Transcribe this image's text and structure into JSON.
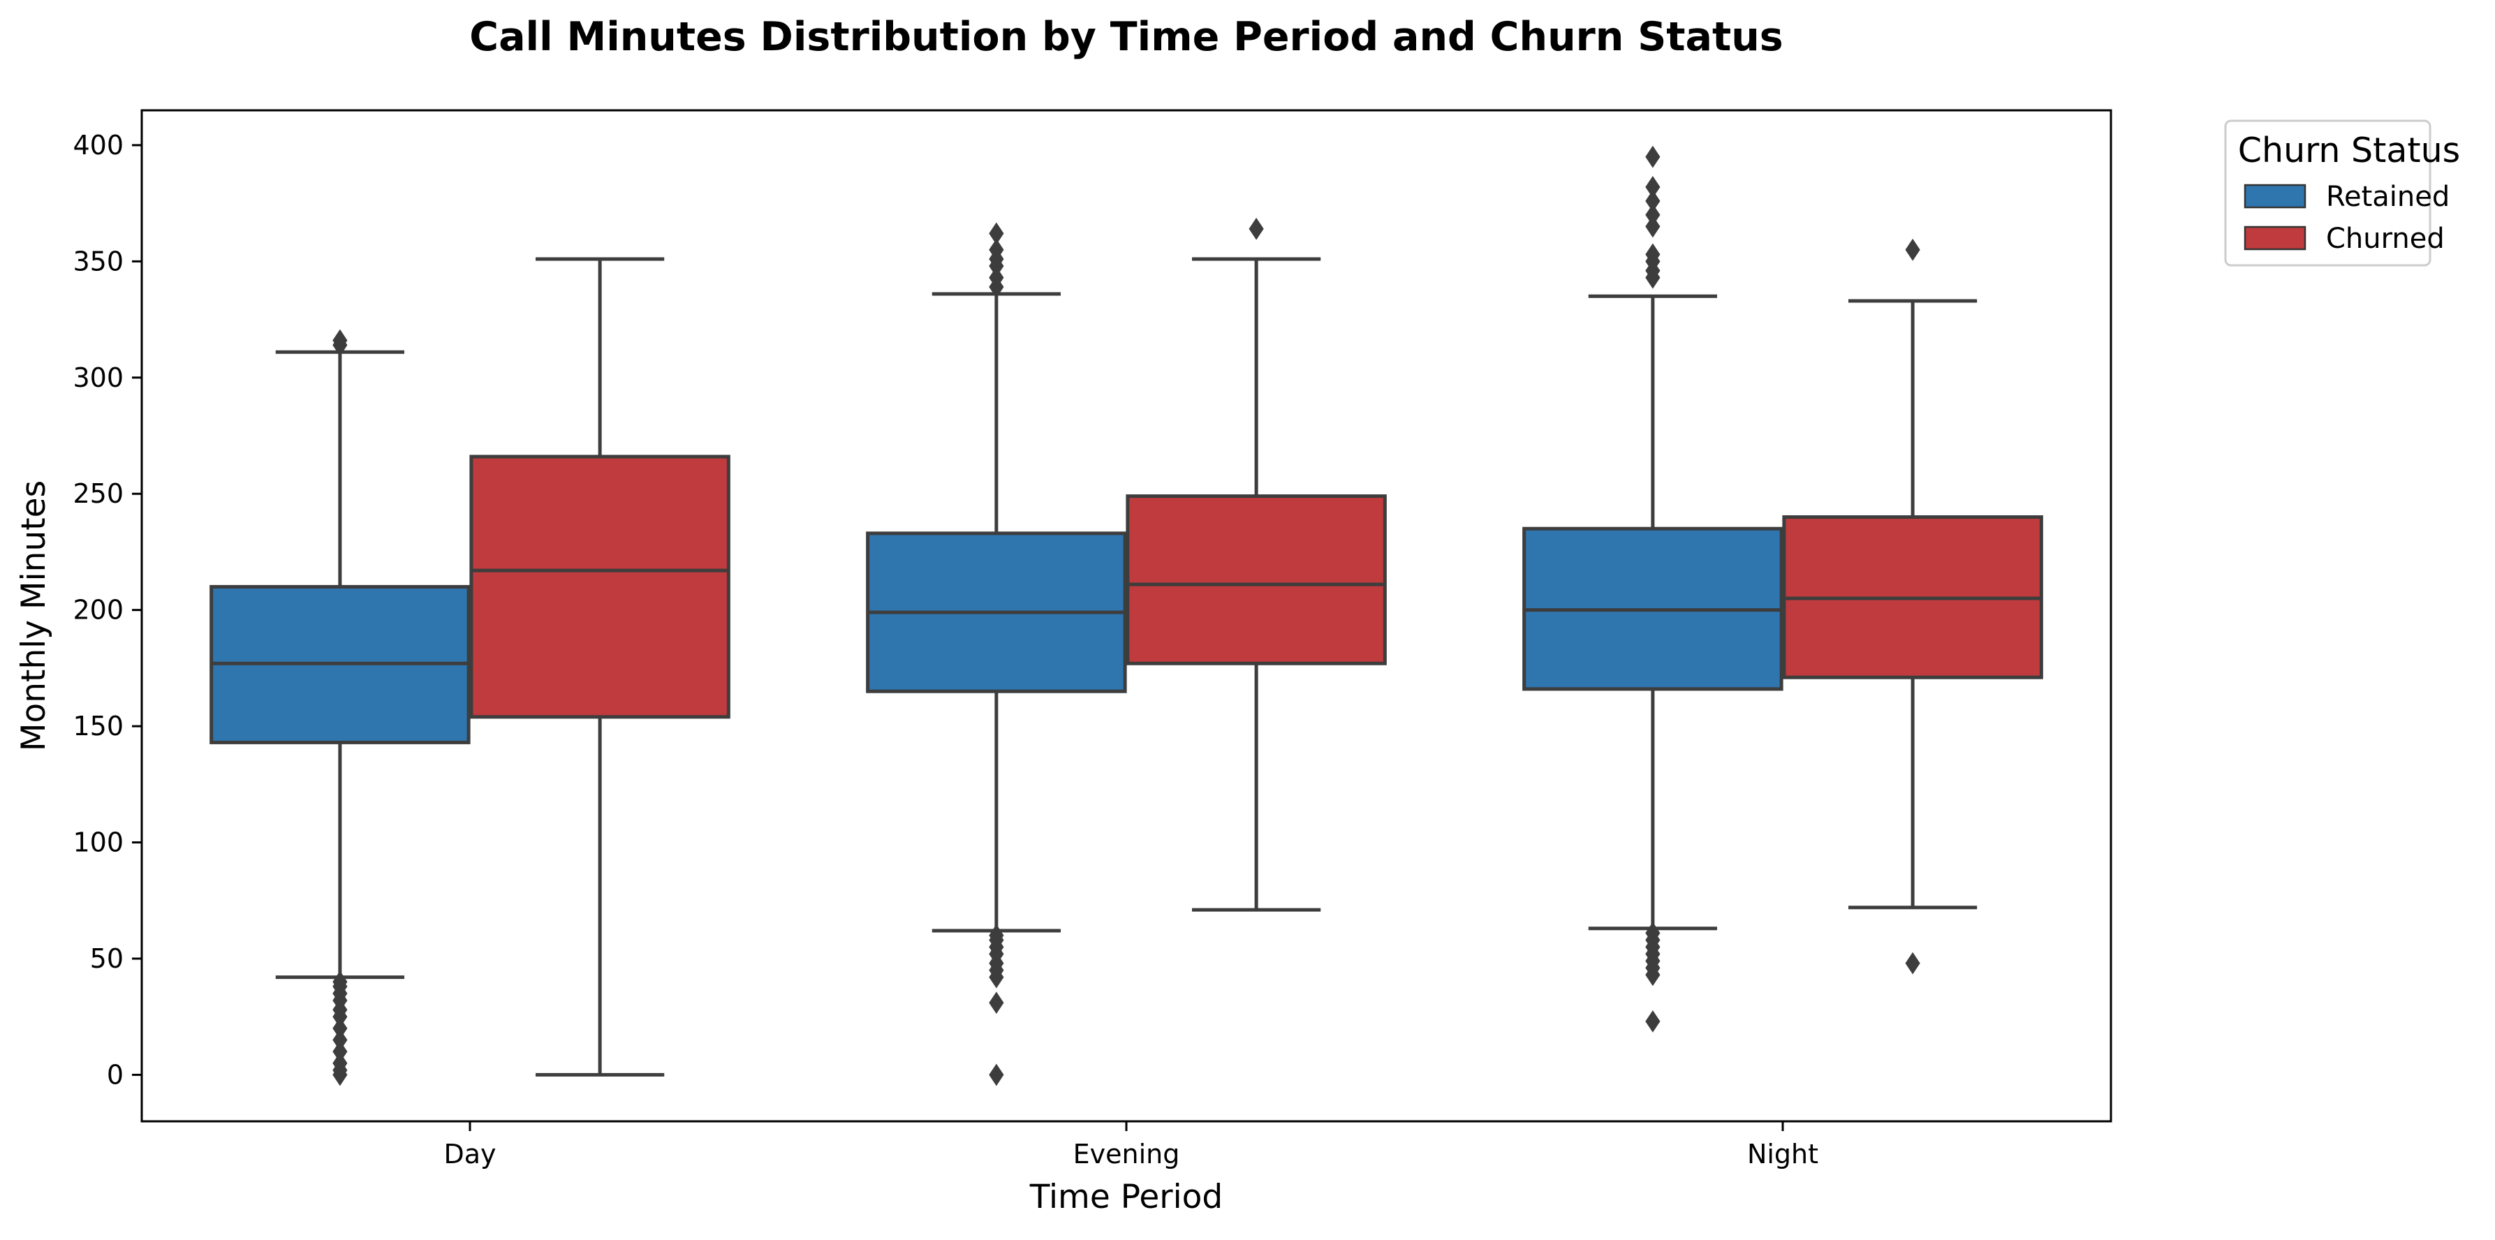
{
  "chart_data": {
    "type": "boxplot",
    "title": "Call Minutes Distribution by Time Period and Churn Status",
    "xlabel": "Time Period",
    "ylabel": "Monthly Minutes",
    "categories": [
      "Day",
      "Evening",
      "Night"
    ],
    "ylim": [
      -20,
      415
    ],
    "yticks": [
      0,
      50,
      100,
      150,
      200,
      250,
      300,
      350,
      400
    ],
    "grid": false,
    "legend": {
      "title": "Churn Status",
      "placement": "outside-top-right",
      "entries": [
        "Retained",
        "Churned"
      ]
    },
    "series": [
      {
        "name": "Retained",
        "color": "#2f75ae",
        "boxes": [
          {
            "category": "Day",
            "whisker_low": 42,
            "q1": 143,
            "median": 177,
            "q3": 210,
            "whisker_high": 311,
            "outliers": [
              0,
              2,
              5,
              10,
              15,
              20,
              25,
              28,
              32,
              35,
              38,
              40,
              314,
              316
            ]
          },
          {
            "category": "Evening",
            "whisker_low": 62,
            "q1": 165,
            "median": 199,
            "q3": 233,
            "whisker_high": 336,
            "outliers": [
              0,
              31,
              42,
              45,
              48,
              52,
              55,
              58,
              60,
              339,
              343,
              348,
              351,
              355,
              362
            ]
          },
          {
            "category": "Night",
            "whisker_low": 63,
            "q1": 166,
            "median": 200,
            "q3": 235,
            "whisker_high": 335,
            "outliers": [
              23,
              43,
              46,
              49,
              52,
              55,
              58,
              61,
              343,
              346,
              350,
              353,
              365,
              370,
              376,
              382,
              395
            ]
          }
        ]
      },
      {
        "name": "Churned",
        "color": "#c03b3d",
        "boxes": [
          {
            "category": "Day",
            "whisker_low": 0,
            "q1": 154,
            "median": 217,
            "q3": 266,
            "whisker_high": 351,
            "outliers": []
          },
          {
            "category": "Evening",
            "whisker_low": 71,
            "q1": 177,
            "median": 211,
            "q3": 249,
            "whisker_high": 351,
            "outliers": [
              364
            ]
          },
          {
            "category": "Night",
            "whisker_low": 72,
            "q1": 171,
            "median": 205,
            "q3": 240,
            "whisker_high": 333,
            "outliers": [
              48,
              355
            ]
          }
        ]
      }
    ]
  }
}
